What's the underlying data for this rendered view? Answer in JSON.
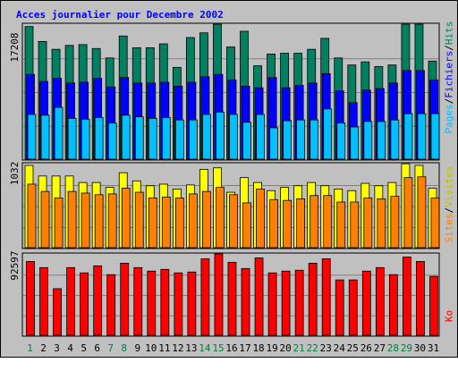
{
  "title": "Acces journalier pour Decembre 2002",
  "colors": {
    "hits": "#008060",
    "fichiers": "#0000ff",
    "pages": "#00c0ff",
    "visites": "#ffff00",
    "sites": "#ff8000",
    "ko": "#ff0000",
    "day_weekday": "#000000",
    "day_weekend": "#008040"
  },
  "legend": {
    "top": {
      "pages": "Pages",
      "sep1": "/",
      "fichiers": "Fichiers",
      "sep2": "/",
      "hits": "Hits"
    },
    "middle": {
      "sites": "Sites",
      "sep": "/",
      "visites": "Visites"
    },
    "bottom": {
      "ko": "Ko"
    }
  },
  "chart_data": [
    {
      "type": "bar",
      "panel": "top",
      "max_label": "17208",
      "ylim": [
        0,
        17208
      ],
      "categories": [
        "1",
        "2",
        "3",
        "4",
        "5",
        "6",
        "7",
        "8",
        "9",
        "10",
        "11",
        "12",
        "13",
        "14",
        "15",
        "16",
        "17",
        "18",
        "19",
        "20",
        "21",
        "22",
        "23",
        "24",
        "25",
        "26",
        "27",
        "28",
        "29",
        "30",
        "31"
      ],
      "series": [
        {
          "name": "Hits",
          "values": [
            16900,
            15000,
            14000,
            14500,
            14600,
            14100,
            12900,
            15700,
            14200,
            14200,
            14700,
            11700,
            15500,
            16100,
            17200,
            14300,
            16300,
            11900,
            13400,
            13500,
            13500,
            14000,
            15400,
            12900,
            12000,
            12400,
            11800,
            12000,
            17200,
            17200,
            12500
          ]
        },
        {
          "name": "Fichiers",
          "values": [
            10800,
            9900,
            10300,
            9700,
            9800,
            10300,
            9200,
            10400,
            9700,
            9700,
            9800,
            9300,
            9800,
            10500,
            10800,
            10100,
            9300,
            9100,
            10400,
            9100,
            9400,
            9700,
            10900,
            8700,
            7200,
            8800,
            9000,
            9700,
            11300,
            11300,
            10100
          ]
        },
        {
          "name": "Pages",
          "values": [
            5700,
            5600,
            6600,
            5200,
            5100,
            5300,
            4600,
            5600,
            5400,
            5200,
            5300,
            5000,
            5000,
            5700,
            6000,
            5700,
            4700,
            5700,
            4000,
            4900,
            5000,
            5000,
            6400,
            4600,
            4100,
            4800,
            4800,
            5000,
            5800,
            5800,
            5800
          ]
        }
      ],
      "day_labels": [
        "1",
        "2",
        "3",
        "4",
        "5",
        "6",
        "7",
        "8",
        "9",
        "10",
        "11",
        "12",
        "13",
        "14",
        "15",
        "16",
        "17",
        "18",
        "19",
        "20",
        "21",
        "22",
        "23",
        "24",
        "25",
        "26",
        "27",
        "28",
        "29",
        "30",
        "31"
      ],
      "weekend_days": [
        "1",
        "7",
        "8",
        "14",
        "15",
        "21",
        "22",
        "28",
        "29"
      ]
    },
    {
      "type": "bar",
      "panel": "middle",
      "max_label": "1032",
      "ylim": [
        0,
        1032
      ],
      "categories": [
        "1",
        "2",
        "3",
        "4",
        "5",
        "6",
        "7",
        "8",
        "9",
        "10",
        "11",
        "12",
        "13",
        "14",
        "15",
        "16",
        "17",
        "18",
        "19",
        "20",
        "21",
        "22",
        "23",
        "24",
        "25",
        "26",
        "27",
        "28",
        "29",
        "30",
        "31"
      ],
      "series": [
        {
          "name": "Visites",
          "values": [
            1010,
            880,
            880,
            880,
            800,
            800,
            740,
            920,
            820,
            760,
            780,
            720,
            770,
            960,
            980,
            680,
            860,
            800,
            700,
            740,
            760,
            800,
            760,
            720,
            700,
            790,
            760,
            800,
            1030,
            1010,
            730
          ]
        },
        {
          "name": "Sites",
          "values": [
            780,
            690,
            610,
            690,
            670,
            650,
            660,
            730,
            680,
            610,
            620,
            610,
            660,
            690,
            740,
            650,
            550,
            720,
            590,
            580,
            600,
            640,
            640,
            560,
            560,
            610,
            600,
            630,
            860,
            870,
            610
          ]
        }
      ]
    },
    {
      "type": "bar",
      "panel": "bottom",
      "max_label": "92597",
      "ylim": [
        0,
        92597
      ],
      "categories": [
        "1",
        "2",
        "3",
        "4",
        "5",
        "6",
        "7",
        "8",
        "9",
        "10",
        "11",
        "12",
        "13",
        "14",
        "15",
        "16",
        "17",
        "18",
        "19",
        "20",
        "21",
        "22",
        "23",
        "24",
        "25",
        "26",
        "27",
        "28",
        "29",
        "30",
        "31"
      ],
      "series": [
        {
          "name": "Ko",
          "values": [
            84000,
            77000,
            53000,
            77000,
            71000,
            79000,
            69000,
            82000,
            77000,
            73000,
            75000,
            71000,
            72000,
            87000,
            92597,
            83000,
            76000,
            88000,
            71000,
            73000,
            74000,
            82000,
            87000,
            63000,
            63000,
            73000,
            77000,
            69000,
            89000,
            84000,
            67000
          ]
        }
      ]
    }
  ]
}
